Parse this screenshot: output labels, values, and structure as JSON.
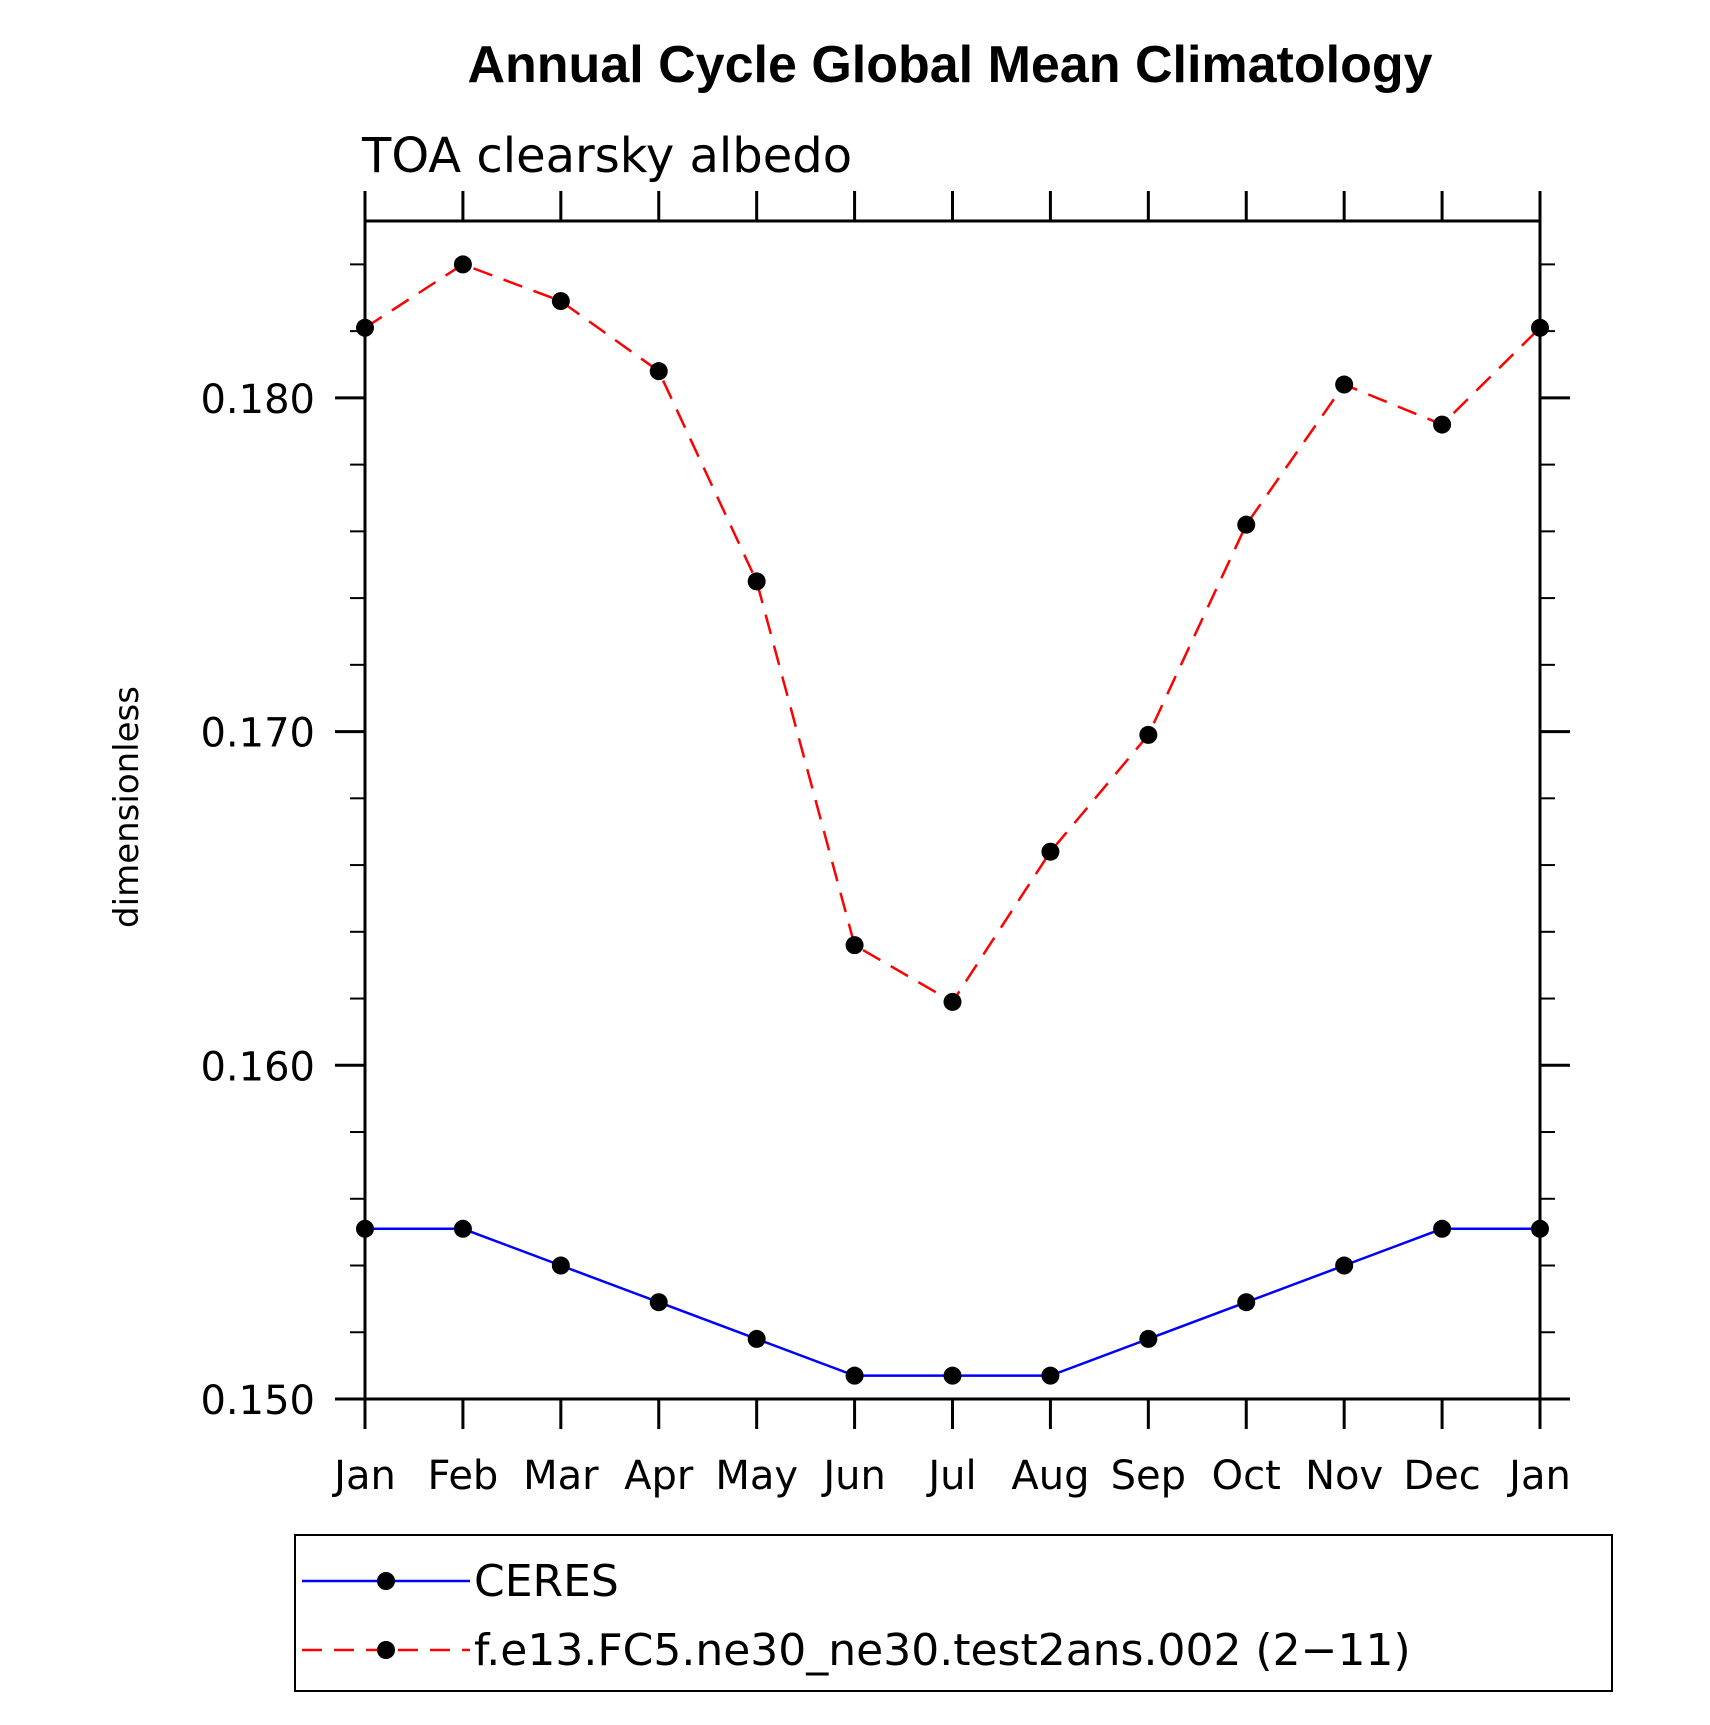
{
  "chart_data": {
    "type": "line",
    "title": "Annual Cycle Global Mean Climatology",
    "subtitle": "TOA clearsky albedo",
    "ylabel": "dimensionless",
    "xlabel": "",
    "categories": [
      "Jan",
      "Feb",
      "Mar",
      "Apr",
      "May",
      "Jun",
      "Jul",
      "Aug",
      "Sep",
      "Oct",
      "Nov",
      "Dec",
      "Jan"
    ],
    "ylim": [
      0.15,
      0.1853
    ],
    "yticks": [
      0.15,
      0.16,
      0.17,
      0.18
    ],
    "ytick_labels": [
      "0.150",
      "0.160",
      "0.170",
      "0.180"
    ],
    "y_minor_step": 0.002,
    "grid": false,
    "legend_position": "bottom",
    "series": [
      {
        "name": "CERES",
        "color": "#0000ff",
        "dash": "solid",
        "marker": "filled-circle",
        "values": [
          0.1551,
          0.1551,
          0.154,
          0.1529,
          0.1518,
          0.1507,
          0.1507,
          0.1507,
          0.1518,
          0.1529,
          0.154,
          0.1551,
          0.1551
        ]
      },
      {
        "name": "f.e13.FC5.ne30_ne30.test2ans.002 (2−11)",
        "color": "#ff0000",
        "dash": "dashed",
        "marker": "filled-circle",
        "values": [
          0.1821,
          0.184,
          0.1829,
          0.1808,
          0.1745,
          0.1636,
          0.1619,
          0.1664,
          0.1699,
          0.1762,
          0.1804,
          0.1792,
          0.1821
        ]
      }
    ]
  }
}
